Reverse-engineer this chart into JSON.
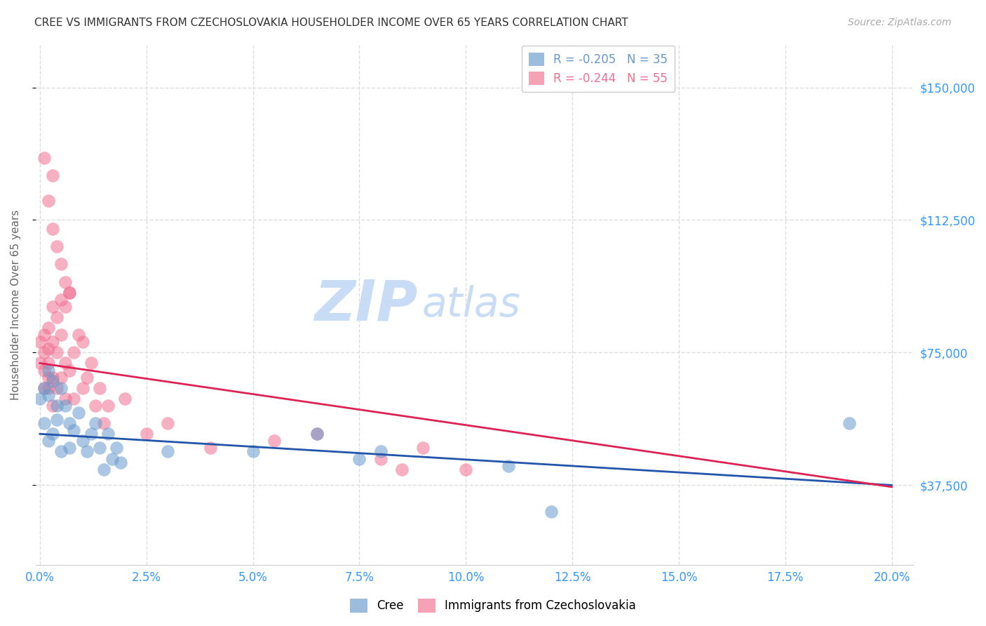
{
  "title": "CREE VS IMMIGRANTS FROM CZECHOSLOVAKIA HOUSEHOLDER INCOME OVER 65 YEARS CORRELATION CHART",
  "source": "Source: ZipAtlas.com",
  "ylabel": "Householder Income Over 65 years",
  "ytick_labels": [
    "$37,500",
    "$75,000",
    "$112,500",
    "$150,000"
  ],
  "ytick_values": [
    37500,
    75000,
    112500,
    150000
  ],
  "xtick_labels": [
    "0.0%",
    "2.5%",
    "5.0%",
    "7.5%",
    "10.0%",
    "12.5%",
    "15.0%",
    "17.5%",
    "20.0%"
  ],
  "xtick_positions": [
    0.0,
    0.025,
    0.05,
    0.075,
    0.1,
    0.125,
    0.15,
    0.175,
    0.2
  ],
  "xlim": [
    -0.001,
    0.205
  ],
  "ylim": [
    15000,
    162000
  ],
  "legend_entries": [
    {
      "r": "R = -0.205",
      "n": "N = 35",
      "color": "#6699cc"
    },
    {
      "r": "R = -0.244",
      "n": "N = 55",
      "color": "#f07090"
    }
  ],
  "cree_x": [
    0.0,
    0.001,
    0.001,
    0.002,
    0.002,
    0.002,
    0.003,
    0.003,
    0.004,
    0.004,
    0.005,
    0.005,
    0.006,
    0.007,
    0.007,
    0.008,
    0.009,
    0.01,
    0.011,
    0.012,
    0.013,
    0.014,
    0.015,
    0.016,
    0.017,
    0.018,
    0.019,
    0.03,
    0.05,
    0.065,
    0.075,
    0.08,
    0.11,
    0.19,
    0.12
  ],
  "cree_y": [
    62000,
    65000,
    55000,
    70000,
    50000,
    63000,
    67000,
    52000,
    60000,
    56000,
    65000,
    47000,
    60000,
    55000,
    48000,
    53000,
    58000,
    50000,
    47000,
    52000,
    55000,
    48000,
    42000,
    52000,
    45000,
    48000,
    44000,
    47000,
    47000,
    52000,
    45000,
    47000,
    43000,
    55000,
    30000
  ],
  "czech_x": [
    0.0,
    0.0,
    0.001,
    0.001,
    0.001,
    0.001,
    0.002,
    0.002,
    0.002,
    0.002,
    0.002,
    0.003,
    0.003,
    0.003,
    0.003,
    0.004,
    0.004,
    0.004,
    0.005,
    0.005,
    0.005,
    0.006,
    0.006,
    0.007,
    0.007,
    0.008,
    0.008,
    0.009,
    0.01,
    0.01,
    0.011,
    0.012,
    0.013,
    0.014,
    0.015,
    0.016,
    0.02,
    0.025,
    0.03,
    0.04,
    0.055,
    0.065,
    0.08,
    0.085,
    0.09,
    0.1,
    0.001,
    0.002,
    0.003,
    0.003,
    0.004,
    0.005,
    0.006,
    0.006,
    0.007
  ],
  "czech_y": [
    78000,
    72000,
    80000,
    70000,
    75000,
    65000,
    82000,
    76000,
    68000,
    72000,
    65000,
    88000,
    78000,
    68000,
    60000,
    85000,
    75000,
    65000,
    90000,
    80000,
    68000,
    72000,
    62000,
    92000,
    70000,
    75000,
    62000,
    80000,
    78000,
    65000,
    68000,
    72000,
    60000,
    65000,
    55000,
    60000,
    62000,
    52000,
    55000,
    48000,
    50000,
    52000,
    45000,
    42000,
    48000,
    42000,
    130000,
    118000,
    125000,
    110000,
    105000,
    100000,
    95000,
    88000,
    92000
  ],
  "cree_color": "#6699cc",
  "czech_color": "#f07090",
  "cree_line_color": "#2255aa",
  "czech_line_color": "#dd2255",
  "cree_line": [
    0.0,
    0.2,
    52000,
    37500
  ],
  "czech_line": [
    0.0,
    0.2,
    72000,
    37000
  ],
  "bg_color": "#ffffff",
  "grid_color": "#dddddd",
  "title_color": "#333333",
  "source_color": "#aaaaaa",
  "ylabel_color": "#666666",
  "tick_color": "#3399ff",
  "watermark": "ZIPatlas",
  "wm_color": "#c8ddf5"
}
